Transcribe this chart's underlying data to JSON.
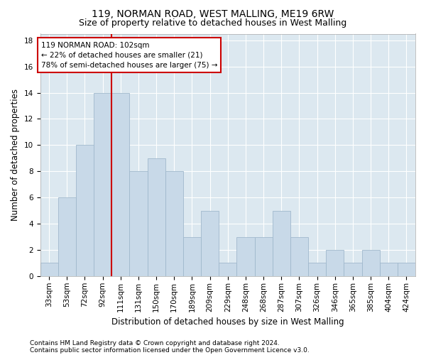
{
  "title": "119, NORMAN ROAD, WEST MALLING, ME19 6RW",
  "subtitle": "Size of property relative to detached houses in West Malling",
  "xlabel": "Distribution of detached houses by size in West Malling",
  "ylabel": "Number of detached properties",
  "footnote1": "Contains HM Land Registry data © Crown copyright and database right 2024.",
  "footnote2": "Contains public sector information licensed under the Open Government Licence v3.0.",
  "categories": [
    "33sqm",
    "53sqm",
    "72sqm",
    "92sqm",
    "111sqm",
    "131sqm",
    "150sqm",
    "170sqm",
    "189sqm",
    "209sqm",
    "229sqm",
    "248sqm",
    "268sqm",
    "287sqm",
    "307sqm",
    "326sqm",
    "346sqm",
    "365sqm",
    "385sqm",
    "404sqm",
    "424sqm"
  ],
  "values": [
    1,
    6,
    10,
    14,
    14,
    8,
    9,
    8,
    3,
    5,
    1,
    3,
    3,
    5,
    3,
    1,
    2,
    1,
    2,
    1,
    1
  ],
  "bar_color": "#c8d9e8",
  "bar_edge_color": "#a0b8cc",
  "vline_x": 3.5,
  "vline_color": "#cc0000",
  "annotation_text": "119 NORMAN ROAD: 102sqm\n← 22% of detached houses are smaller (21)\n78% of semi-detached houses are larger (75) →",
  "annotation_box_facecolor": "#ffffff",
  "annotation_box_edge": "#cc0000",
  "ylim": [
    0,
    18.5
  ],
  "yticks": [
    0,
    2,
    4,
    6,
    8,
    10,
    12,
    14,
    16,
    18
  ],
  "figure_background": "#ffffff",
  "plot_background": "#dce8f0",
  "grid_color": "#ffffff",
  "title_fontsize": 10,
  "subtitle_fontsize": 9,
  "tick_fontsize": 7.5,
  "ylabel_fontsize": 8.5,
  "xlabel_fontsize": 8.5,
  "footnote_fontsize": 6.5,
  "annotation_fontsize": 7.5
}
